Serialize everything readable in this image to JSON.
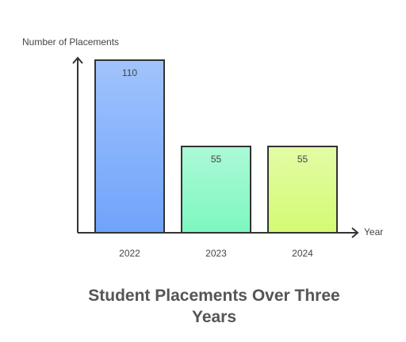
{
  "chart_data": {
    "type": "bar",
    "title": "Student Placements Over Three Years",
    "y_label": "Number of Placements",
    "x_label": "Year",
    "categories": [
      "2022",
      "2023",
      "2024"
    ],
    "values": [
      110,
      55,
      55
    ],
    "colors": [
      "#6fa3fb",
      "#7ef7c0",
      "#d4fa74"
    ],
    "ylim": [
      0,
      110
    ]
  }
}
